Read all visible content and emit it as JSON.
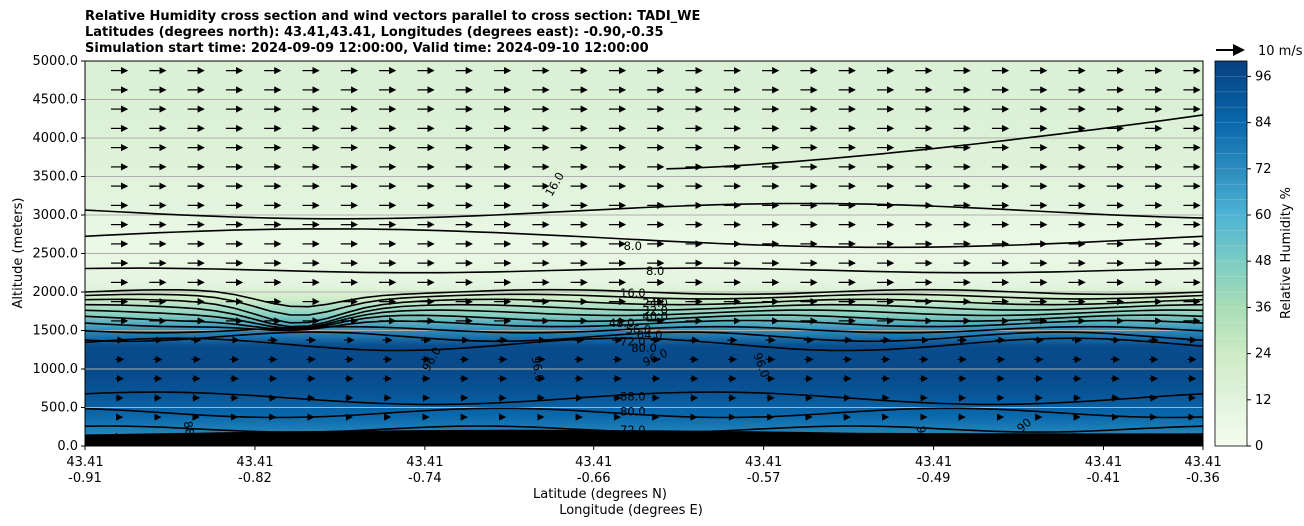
{
  "header": {
    "title_line1": "Relative Humidity cross section and wind vectors parallel to cross section: TADI_WE",
    "title_line2": "Latitudes (degrees north): 43.41,43.41, Longitudes (degrees east): -0.90,-0.35",
    "title_line3": "Simulation start time: 2024-09-09 12:00:00, Valid time: 2024-09-10 12:00:00"
  },
  "chart_data": {
    "type": "heatmap",
    "title": "Relative Humidity cross section and wind vectors parallel to cross section: TADI_WE",
    "xlabel_lat": "Latitude (degrees N)",
    "xlabel_lon": "Longitude (degrees E)",
    "ylabel": "Altitude (meters)",
    "ylim": [
      0,
      5000
    ],
    "y_ticks": [
      "0.0",
      "500.0",
      "1000.0",
      "1500.0",
      "2000.0",
      "2500.0",
      "3000.0",
      "3500.0",
      "4000.0",
      "4500.0",
      "5000.0"
    ],
    "x_ticks": [
      {
        "lat": "43.41",
        "lon": "-0.91"
      },
      {
        "lat": "43.41",
        "lon": "-0.82"
      },
      {
        "lat": "43.41",
        "lon": "-0.74"
      },
      {
        "lat": "43.41",
        "lon": "-0.66"
      },
      {
        "lat": "43.41",
        "lon": "-0.57"
      },
      {
        "lat": "43.41",
        "lon": "-0.49"
      },
      {
        "lat": "43.41",
        "lon": "-0.41"
      },
      {
        "lat": "43.41",
        "lon": "-0.36"
      }
    ],
    "grid": "horizontal",
    "colorbar": {
      "label": "Relative Humidity %",
      "range": [
        0,
        100
      ],
      "ticks": [
        "0",
        "12",
        "24",
        "36",
        "48",
        "60",
        "72",
        "84",
        "96"
      ]
    },
    "quiver_key": "10 m/s",
    "rh_profile": [
      {
        "alt": 0,
        "rh": 78
      },
      {
        "alt": 150,
        "rh": 74
      },
      {
        "alt": 400,
        "rh": 84
      },
      {
        "alt": 700,
        "rh": 92
      },
      {
        "alt": 1000,
        "rh": 97
      },
      {
        "alt": 1300,
        "rh": 95
      },
      {
        "alt": 1500,
        "rh": 72
      },
      {
        "alt": 1700,
        "rh": 45
      },
      {
        "alt": 1900,
        "rh": 22
      },
      {
        "alt": 2100,
        "rh": 10
      },
      {
        "alt": 2600,
        "rh": 6
      },
      {
        "alt": 3200,
        "rh": 11
      },
      {
        "alt": 3800,
        "rh": 14
      },
      {
        "alt": 4400,
        "rh": 15
      },
      {
        "alt": 5000,
        "rh": 15
      }
    ],
    "contour_labels": [
      {
        "text": "16.0",
        "x": 0.42,
        "alt": 3400,
        "rot": -60
      },
      {
        "text": "8.0",
        "x": 0.49,
        "alt": 2600,
        "rot": 0
      },
      {
        "text": "8.0",
        "x": 0.51,
        "alt": 2270,
        "rot": 0
      },
      {
        "text": "16.0",
        "x": 0.49,
        "alt": 1990,
        "rot": 0
      },
      {
        "text": "24.0",
        "x": 0.51,
        "alt": 1860,
        "rot": 0
      },
      {
        "text": "32.0",
        "x": 0.51,
        "alt": 1760,
        "rot": 0
      },
      {
        "text": "40.0",
        "x": 0.51,
        "alt": 1680,
        "rot": 0
      },
      {
        "text": "48.0",
        "x": 0.48,
        "alt": 1600,
        "rot": 0
      },
      {
        "text": "56.0",
        "x": 0.495,
        "alt": 1510,
        "rot": 0
      },
      {
        "text": "64.0",
        "x": 0.505,
        "alt": 1440,
        "rot": 0
      },
      {
        "text": "72.0",
        "x": 0.49,
        "alt": 1360,
        "rot": 0
      },
      {
        "text": "80.0",
        "x": 0.5,
        "alt": 1270,
        "rot": 0
      },
      {
        "text": "96.0",
        "x": 0.31,
        "alt": 1130,
        "rot": -60
      },
      {
        "text": "96.0",
        "x": 0.405,
        "alt": 1000,
        "rot": 80
      },
      {
        "text": "96.0",
        "x": 0.51,
        "alt": 1150,
        "rot": -25
      },
      {
        "text": "96.0",
        "x": 0.605,
        "alt": 1050,
        "rot": 70
      },
      {
        "text": "88.0",
        "x": 0.49,
        "alt": 640,
        "rot": 0
      },
      {
        "text": "80.0",
        "x": 0.49,
        "alt": 450,
        "rot": 0
      },
      {
        "text": "72.0",
        "x": 0.49,
        "alt": 210,
        "rot": 0
      },
      {
        "text": "88",
        "x": 0.093,
        "alt": 230,
        "rot": 80
      },
      {
        "text": "9",
        "x": 0.748,
        "alt": 210,
        "rot": 80
      },
      {
        "text": "90",
        "x": 0.84,
        "alt": 270,
        "rot": -40
      }
    ]
  }
}
